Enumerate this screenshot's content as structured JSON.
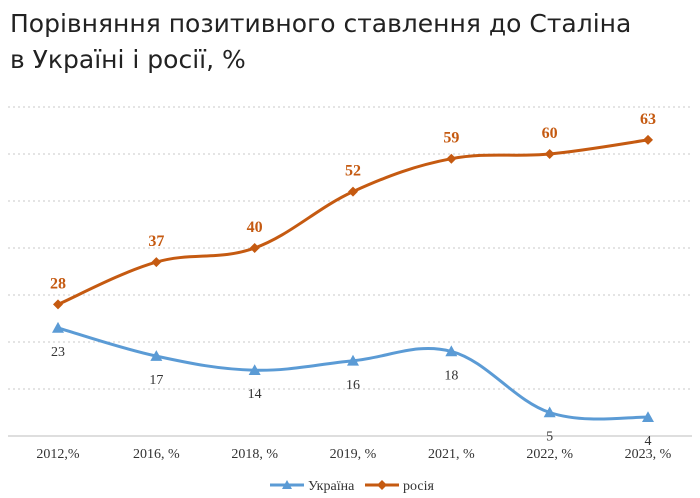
{
  "title_line1": "Порівняння позитивного ставлення до Сталіна",
  "title_line2": "в Україні і росії, %",
  "chart_data": {
    "type": "line",
    "categories": [
      "2012,%",
      "2016, %",
      "2018, %",
      "2019, %",
      "2021, %",
      "2022, %",
      "2023, %"
    ],
    "series": [
      {
        "name": "Україна",
        "values": [
          23,
          17,
          14,
          16,
          18,
          5,
          4
        ],
        "color": "#5b9bd5",
        "marker": "triangle"
      },
      {
        "name": "росія",
        "values": [
          28,
          37,
          40,
          52,
          59,
          60,
          63
        ],
        "color": "#c55a11",
        "marker": "diamond"
      }
    ],
    "ylim": [
      0,
      70
    ],
    "grid": true,
    "legend": "bottom"
  }
}
